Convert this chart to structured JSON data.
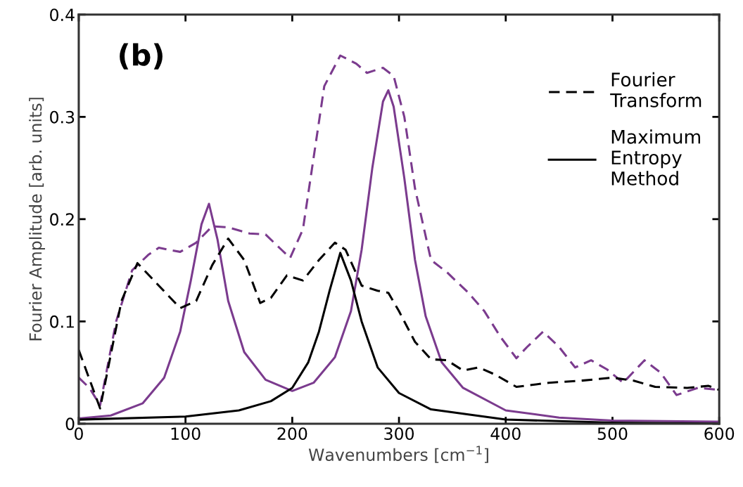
{
  "chart_data": {
    "type": "line",
    "xlabel": "Wavenumbers [cm$^{−1}$]",
    "ylabel": "Fourier Amplitude [arb. units]",
    "annotations": [
      "(b)"
    ],
    "xlim": [
      0,
      600
    ],
    "xticks": [
      0,
      100,
      200,
      300,
      400,
      500,
      600
    ],
    "ylim": [
      0,
      0.4
    ],
    "yticks": [
      0,
      0.1,
      0.2,
      0.3,
      0.4
    ],
    "grid": false,
    "legend": "upper right",
    "series": [
      {
        "color": "#7b3b8e",
        "line_style": "dashed",
        "x": [
          0,
          10,
          20,
          35,
          50,
          65,
          75,
          95,
          110,
          125,
          140,
          160,
          175,
          190,
          198,
          210,
          220,
          230,
          245,
          260,
          270,
          285,
          295,
          305,
          315,
          330,
          345,
          365,
          380,
          395,
          410,
          420,
          435,
          450,
          465,
          480,
          495,
          510,
          530,
          545,
          560,
          580,
          600
        ],
        "values": [
          0.045,
          0.035,
          0.018,
          0.1,
          0.15,
          0.165,
          0.172,
          0.168,
          0.177,
          0.193,
          0.192,
          0.186,
          0.185,
          0.17,
          0.162,
          0.19,
          0.26,
          0.33,
          0.36,
          0.352,
          0.343,
          0.348,
          0.34,
          0.3,
          0.23,
          0.16,
          0.148,
          0.128,
          0.11,
          0.085,
          0.064,
          0.075,
          0.09,
          0.075,
          0.055,
          0.062,
          0.053,
          0.04,
          0.062,
          0.05,
          0.028,
          0.035,
          0.033
        ]
      },
      {
        "color": "#7b3b8e",
        "line_style": "solid",
        "x": [
          0,
          30,
          60,
          80,
          95,
          105,
          115,
          122,
          130,
          140,
          155,
          175,
          200,
          220,
          240,
          255,
          265,
          275,
          285,
          290,
          295,
          305,
          315,
          325,
          340,
          360,
          400,
          450,
          500,
          600
        ],
        "values": [
          0.005,
          0.008,
          0.02,
          0.045,
          0.09,
          0.14,
          0.195,
          0.215,
          0.18,
          0.12,
          0.07,
          0.043,
          0.032,
          0.04,
          0.065,
          0.11,
          0.17,
          0.25,
          0.315,
          0.326,
          0.31,
          0.24,
          0.16,
          0.105,
          0.06,
          0.035,
          0.013,
          0.006,
          0.003,
          0.002
        ]
      },
      {
        "name": "Fourier\nTransform",
        "color": "#000000",
        "line_style": "dashed",
        "x": [
          0,
          20,
          40,
          55,
          75,
          95,
          110,
          125,
          140,
          155,
          170,
          180,
          195,
          210,
          225,
          240,
          250,
          265,
          280,
          290,
          300,
          315,
          330,
          345,
          360,
          375,
          390,
          410,
          440,
          470,
          500,
          520,
          540,
          570,
          590,
          600
        ],
        "values": [
          0.072,
          0.015,
          0.12,
          0.157,
          0.135,
          0.113,
          0.12,
          0.155,
          0.181,
          0.16,
          0.118,
          0.123,
          0.145,
          0.14,
          0.16,
          0.177,
          0.17,
          0.135,
          0.13,
          0.128,
          0.11,
          0.08,
          0.063,
          0.062,
          0.052,
          0.055,
          0.048,
          0.036,
          0.04,
          0.042,
          0.045,
          0.042,
          0.036,
          0.035,
          0.037,
          0.033
        ]
      },
      {
        "name": "Maximum\nEntropy\nMethod",
        "color": "#000000",
        "line_style": "solid",
        "x": [
          0,
          100,
          150,
          180,
          200,
          215,
          225,
          235,
          245,
          255,
          265,
          280,
          300,
          330,
          400,
          500,
          600
        ],
        "values": [
          0.004,
          0.007,
          0.013,
          0.022,
          0.035,
          0.06,
          0.09,
          0.13,
          0.167,
          0.14,
          0.1,
          0.055,
          0.03,
          0.014,
          0.004,
          0.001,
          0.0
        ]
      }
    ]
  }
}
